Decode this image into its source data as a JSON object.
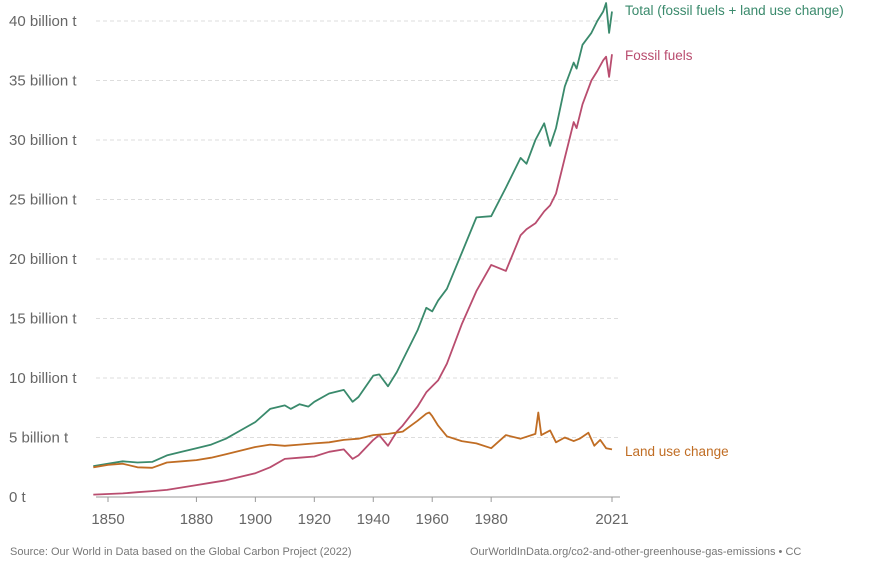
{
  "chart_data": {
    "type": "line",
    "title": "",
    "xlabel": "",
    "ylabel": "",
    "xlim": [
      1843,
      2024
    ],
    "ylim": [
      0,
      42
    ],
    "y_ticks": [
      {
        "value": 0,
        "label": "0 t"
      },
      {
        "value": 5,
        "label": "5 billion t"
      },
      {
        "value": 10,
        "label": "10 billion t"
      },
      {
        "value": 15,
        "label": "15 billion t"
      },
      {
        "value": 20,
        "label": "20 billion t"
      },
      {
        "value": 25,
        "label": "25 billion t"
      },
      {
        "value": 30,
        "label": "30 billion t"
      },
      {
        "value": 35,
        "label": "35 billion t"
      },
      {
        "value": 40,
        "label": "40 billion t"
      }
    ],
    "x_ticks": [
      {
        "value": 1850,
        "label": "1850"
      },
      {
        "value": 1880,
        "label": "1880"
      },
      {
        "value": 1900,
        "label": "1900"
      },
      {
        "value": 1920,
        "label": "1920"
      },
      {
        "value": 1940,
        "label": "1940"
      },
      {
        "value": 1960,
        "label": "1960"
      },
      {
        "value": 1980,
        "label": "1980"
      },
      {
        "value": 2021,
        "label": "2021"
      }
    ],
    "grid": "horizontal",
    "legend": "inline-right",
    "series": [
      {
        "name": "Total (fossil fuels + land use change)",
        "color": "#3a8a6c",
        "x": [
          1845,
          1855,
          1860,
          1865,
          1870,
          1875,
          1880,
          1885,
          1890,
          1895,
          1900,
          1905,
          1910,
          1912,
          1915,
          1918,
          1920,
          1925,
          1930,
          1933,
          1935,
          1940,
          1942,
          1945,
          1948,
          1950,
          1955,
          1958,
          1960,
          1962,
          1965,
          1970,
          1975,
          1980,
          1985,
          1990,
          1992,
          1995,
          1998,
          2000,
          2002,
          2005,
          2008,
          2009,
          2011,
          2014,
          2016,
          2018,
          2019,
          2020,
          2021
        ],
        "y": [
          2.6,
          3.0,
          2.9,
          2.95,
          3.5,
          3.8,
          4.1,
          4.4,
          4.9,
          5.6,
          6.3,
          7.4,
          7.7,
          7.4,
          7.8,
          7.6,
          8.0,
          8.7,
          9.0,
          8.0,
          8.4,
          10.2,
          10.3,
          9.3,
          10.5,
          11.5,
          14.0,
          15.9,
          15.6,
          16.5,
          17.5,
          20.5,
          23.5,
          23.6,
          26.0,
          28.5,
          28.0,
          30.0,
          31.4,
          29.5,
          31.0,
          34.5,
          36.5,
          36.0,
          38.0,
          39.0,
          40.0,
          40.8,
          41.5,
          39.0,
          40.8
        ]
      },
      {
        "name": "Fossil fuels",
        "color": "#b94d6f",
        "x": [
          1845,
          1855,
          1860,
          1865,
          1870,
          1875,
          1880,
          1885,
          1890,
          1895,
          1900,
          1905,
          1910,
          1915,
          1920,
          1925,
          1930,
          1933,
          1935,
          1940,
          1942,
          1945,
          1948,
          1950,
          1955,
          1958,
          1960,
          1962,
          1965,
          1970,
          1975,
          1980,
          1985,
          1990,
          1992,
          1995,
          1998,
          2000,
          2002,
          2005,
          2008,
          2009,
          2011,
          2014,
          2016,
          2018,
          2019,
          2020,
          2021
        ],
        "y": [
          0.2,
          0.3,
          0.4,
          0.5,
          0.6,
          0.8,
          1.0,
          1.2,
          1.4,
          1.7,
          2.0,
          2.5,
          3.2,
          3.3,
          3.4,
          3.8,
          4.0,
          3.2,
          3.5,
          4.8,
          5.2,
          4.3,
          5.5,
          6.0,
          7.6,
          8.8,
          9.3,
          9.8,
          11.2,
          14.5,
          17.3,
          19.5,
          19.0,
          22.0,
          22.5,
          23.0,
          24.0,
          24.5,
          25.5,
          28.5,
          31.5,
          31.0,
          33.0,
          35.0,
          35.8,
          36.7,
          37.0,
          35.3,
          37.2
        ]
      },
      {
        "name": "Land use change",
        "color": "#c06d24",
        "x": [
          1845,
          1850,
          1855,
          1860,
          1865,
          1870,
          1875,
          1880,
          1885,
          1890,
          1895,
          1900,
          1905,
          1910,
          1915,
          1920,
          1925,
          1930,
          1935,
          1940,
          1945,
          1950,
          1955,
          1958,
          1959,
          1960,
          1962,
          1965,
          1970,
          1975,
          1980,
          1985,
          1990,
          1995,
          1996,
          1997,
          2000,
          2002,
          2005,
          2008,
          2010,
          2013,
          2015,
          2017,
          2019,
          2021
        ],
        "y": [
          2.5,
          2.7,
          2.8,
          2.5,
          2.45,
          2.9,
          3.0,
          3.1,
          3.3,
          3.6,
          3.9,
          4.2,
          4.4,
          4.3,
          4.4,
          4.5,
          4.6,
          4.8,
          4.9,
          5.2,
          5.3,
          5.5,
          6.4,
          7.0,
          7.1,
          6.8,
          6.0,
          5.1,
          4.7,
          4.5,
          4.1,
          5.2,
          4.9,
          5.3,
          7.1,
          5.2,
          5.6,
          4.6,
          5.0,
          4.7,
          4.9,
          5.4,
          4.3,
          4.8,
          4.1,
          4.0
        ]
      }
    ]
  },
  "footer": {
    "source": "Source: Our World in Data based on the Global Carbon Project (2022)",
    "url": "OurWorldInData.org/co2-and-other-greenhouse-gas-emissions • CC"
  }
}
